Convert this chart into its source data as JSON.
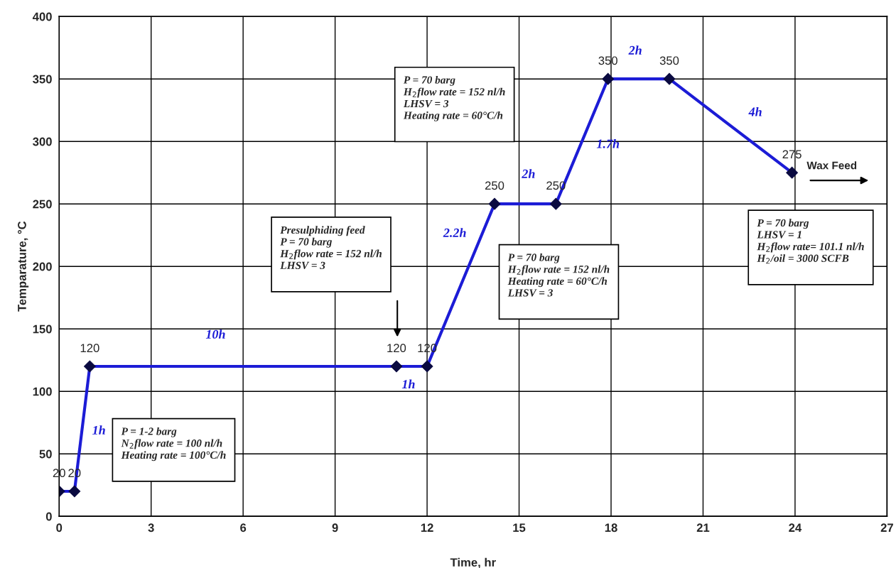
{
  "chart_data": {
    "type": "line",
    "xlabel": "Time, hr",
    "ylabel": "Temparature, °C",
    "x": [
      0,
      0.5,
      1,
      11,
      12,
      14.2,
      16.2,
      17.9,
      19.9,
      23.9
    ],
    "series": [
      {
        "color": "#1c1cd6",
        "values": [
          20,
          20,
          120,
          120,
          120,
          250,
          250,
          350,
          350,
          275
        ]
      }
    ],
    "marker": "diamond",
    "data_labels": true,
    "grid": true,
    "xlim": [
      0,
      27
    ],
    "xticks": [
      0,
      3,
      6,
      9,
      12,
      15,
      18,
      21,
      24,
      27
    ],
    "ylim": [
      0,
      400
    ],
    "yticks": [
      0,
      50,
      100,
      150,
      200,
      250,
      300,
      350,
      400
    ],
    "annotations": [
      "1h",
      "10h",
      "1h",
      "2.2h",
      "2h",
      "1.7h",
      "2h",
      "4h",
      "P = 1-2 barg\nN$_{2}$flow rate = 100 nl/h\nHeating rate = 100°C/h",
      "Presulphiding feed\nP = 70 barg\nH$_{2}$flow rate = 152 nl/h\nLHSV = 3",
      "P = 70 barg\nH$_{2}$flow rate = 152 nl/h\nLHSV = 3\nHeating rate = 60°C/h",
      "P = 70 barg\nH$_{2}$flow rate = 152 nl/h\nHeating rate = 60°C/h\nLHSV = 3",
      "P = 70 barg\nLHSV = 1\nH$_{2}$flow rate= 101.1 nl/h\nH$_{2}$/oil = 3000 SCFB",
      "Wax Feed"
    ]
  }
}
